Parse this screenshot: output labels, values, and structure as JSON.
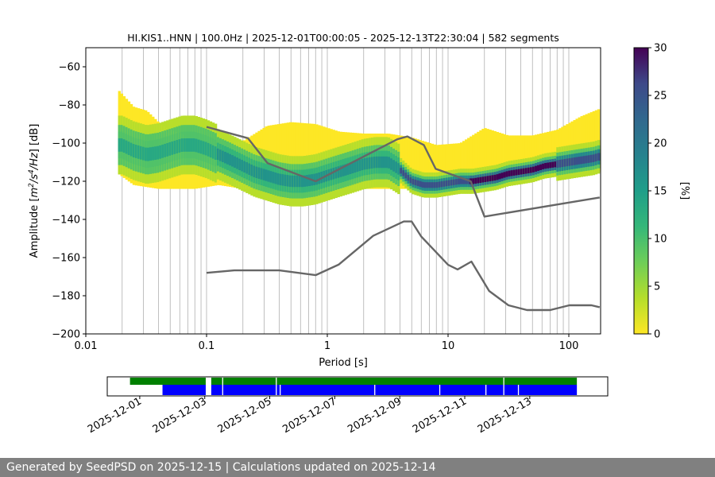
{
  "chart_data": [
    {
      "type": "heatmap",
      "title": "HI.KIS1..HNN | 100.0Hz | 2025-12-01T00:00:05 - 2025-12-13T22:30:04 | 582 segments",
      "xlabel": "Period [s]",
      "ylabel_parts": [
        "Amplitude [",
        "m",
        "2",
        "/s",
        "4",
        "/Hz",
        "] [dB]"
      ],
      "x_scale": "log",
      "xlim": [
        0.01,
        180
      ],
      "ylim": [
        -200,
        -50
      ],
      "x_ticks": [
        0.01,
        0.1,
        1,
        10,
        100
      ],
      "x_tick_labels": [
        "0.01",
        "0.1",
        "1",
        "10",
        "100"
      ],
      "y_ticks": [
        -200,
        -180,
        -160,
        -140,
        -120,
        -100,
        -80,
        -60
      ],
      "y_tick_labels": [
        "−200",
        "−180",
        "−160",
        "−140",
        "−120",
        "−100",
        "−80",
        "−60"
      ],
      "grid": "vertical lines at each logarithmic subdivision of the period axis",
      "colormap": "viridis (reversed: yellow = 0, dark purple = 30)",
      "colorbar": {
        "label": "[%]",
        "range": [
          0,
          30
        ],
        "ticks": [
          0,
          5,
          10,
          15,
          20,
          25,
          30
        ],
        "tick_labels": [
          "0",
          "5",
          "10",
          "15",
          "20",
          "25",
          "30"
        ]
      },
      "mode_curve": [
        {
          "period": 0.02,
          "db": -101
        },
        {
          "period": 0.025,
          "db": -104
        },
        {
          "period": 0.032,
          "db": -106
        },
        {
          "period": 0.04,
          "db": -105
        },
        {
          "period": 0.05,
          "db": -103
        },
        {
          "period": 0.063,
          "db": -101
        },
        {
          "period": 0.08,
          "db": -101
        },
        {
          "period": 0.1,
          "db": -103
        },
        {
          "period": 0.126,
          "db": -106
        },
        {
          "period": 0.16,
          "db": -109
        },
        {
          "period": 0.2,
          "db": -112
        },
        {
          "period": 0.25,
          "db": -115
        },
        {
          "period": 0.316,
          "db": -117
        },
        {
          "period": 0.4,
          "db": -119
        },
        {
          "period": 0.5,
          "db": -120
        },
        {
          "period": 0.63,
          "db": -120
        },
        {
          "period": 0.8,
          "db": -119
        },
        {
          "period": 1.0,
          "db": -117
        },
        {
          "period": 1.26,
          "db": -115
        },
        {
          "period": 1.6,
          "db": -113
        },
        {
          "period": 2.0,
          "db": -111
        },
        {
          "period": 2.5,
          "db": -110
        },
        {
          "period": 3.2,
          "db": -110
        },
        {
          "period": 4.0,
          "db": -114
        },
        {
          "period": 5.0,
          "db": -120
        },
        {
          "period": 6.3,
          "db": -122
        },
        {
          "period": 8.0,
          "db": -122
        },
        {
          "period": 10,
          "db": -121
        },
        {
          "period": 12.6,
          "db": -120
        },
        {
          "period": 16,
          "db": -120
        },
        {
          "period": 20,
          "db": -119
        },
        {
          "period": 25,
          "db": -118
        },
        {
          "period": 31.6,
          "db": -116
        },
        {
          "period": 40,
          "db": -115
        },
        {
          "period": 50,
          "db": -114
        },
        {
          "period": 63,
          "db": -112
        },
        {
          "period": 80,
          "db": -111
        },
        {
          "period": 100,
          "db": -110
        },
        {
          "period": 126,
          "db": -109
        },
        {
          "period": 160,
          "db": -108
        },
        {
          "period": 180,
          "db": -107
        }
      ],
      "spread_upper": [
        {
          "period": 0.0185,
          "db": -72
        },
        {
          "period": 0.025,
          "db": -81
        },
        {
          "period": 0.032,
          "db": -83
        },
        {
          "period": 0.04,
          "db": -89
        },
        {
          "period": 0.05,
          "db": -93
        },
        {
          "period": 0.063,
          "db": -95
        },
        {
          "period": 0.08,
          "db": -99
        },
        {
          "period": 0.126,
          "db": -101
        },
        {
          "period": 0.2,
          "db": -99
        },
        {
          "period": 0.316,
          "db": -91
        },
        {
          "period": 0.5,
          "db": -89
        },
        {
          "period": 0.8,
          "db": -90
        },
        {
          "period": 1.26,
          "db": -94
        },
        {
          "period": 2.0,
          "db": -95
        },
        {
          "period": 3.2,
          "db": -95
        },
        {
          "period": 5.0,
          "db": -97
        },
        {
          "period": 6.3,
          "db": -99
        },
        {
          "period": 8.0,
          "db": -101
        },
        {
          "period": 12.6,
          "db": -100
        },
        {
          "period": 20,
          "db": -92
        },
        {
          "period": 31.6,
          "db": -96
        },
        {
          "period": 50,
          "db": -96
        },
        {
          "period": 80,
          "db": -93
        },
        {
          "period": 126,
          "db": -86
        },
        {
          "period": 180,
          "db": -82
        }
      ],
      "spread_lower": [
        {
          "period": 0.0185,
          "db": -116
        },
        {
          "period": 0.025,
          "db": -122
        },
        {
          "period": 0.04,
          "db": -124
        },
        {
          "period": 0.08,
          "db": -124
        },
        {
          "period": 0.126,
          "db": -122
        },
        {
          "period": 0.2,
          "db": -124
        },
        {
          "period": 0.5,
          "db": -125
        },
        {
          "period": 1.0,
          "db": -125
        },
        {
          "period": 2.0,
          "db": -124
        },
        {
          "period": 4.0,
          "db": -124
        },
        {
          "period": 6.3,
          "db": -124
        },
        {
          "period": 10,
          "db": -123
        },
        {
          "period": 16,
          "db": -123
        },
        {
          "period": 25,
          "db": -121
        },
        {
          "period": 40,
          "db": -120
        },
        {
          "period": 63,
          "db": -118
        },
        {
          "period": 100,
          "db": -117
        },
        {
          "period": 180,
          "db": -115
        }
      ],
      "reference_curves": [
        {
          "id": "high-noise-model",
          "points": [
            {
              "period": 0.1,
              "db": -91.5
            },
            {
              "period": 0.22,
              "db": -97.4
            },
            {
              "period": 0.32,
              "db": -110.5
            },
            {
              "period": 0.8,
              "db": -120
            },
            {
              "period": 3.8,
              "db": -98
            },
            {
              "period": 4.6,
              "db": -96.5
            },
            {
              "period": 6.3,
              "db": -101
            },
            {
              "period": 7.9,
              "db": -113.5
            },
            {
              "period": 15.4,
              "db": -120
            },
            {
              "period": 20,
              "db": -138.5
            },
            {
              "period": 180,
              "db": -128.5
            }
          ]
        },
        {
          "id": "low-noise-model",
          "points": [
            {
              "period": 0.1,
              "db": -168
            },
            {
              "period": 0.17,
              "db": -166.7
            },
            {
              "period": 0.4,
              "db": -166.7
            },
            {
              "period": 0.8,
              "db": -169.2
            },
            {
              "period": 1.24,
              "db": -163.7
            },
            {
              "period": 2.4,
              "db": -148.6
            },
            {
              "period": 4.3,
              "db": -141.1
            },
            {
              "period": 5.0,
              "db": -141.1
            },
            {
              "period": 6.0,
              "db": -149
            },
            {
              "period": 10,
              "db": -163.8
            },
            {
              "period": 12,
              "db": -166.2
            },
            {
              "period": 15.6,
              "db": -162.1
            },
            {
              "period": 21.9,
              "db": -177.5
            },
            {
              "period": 31.6,
              "db": -185
            },
            {
              "period": 45,
              "db": -187.5
            },
            {
              "period": 70,
              "db": -187.5
            },
            {
              "period": 101,
              "db": -185
            },
            {
              "period": 154,
              "db": -185
            },
            {
              "period": 180,
              "db": -186
            }
          ]
        }
      ]
    },
    {
      "type": "bar",
      "subtype": "data-availability-timeline",
      "x_tick_labels": [
        "2025-12-01",
        "2025-12-03",
        "2025-12-05",
        "2025-12-07",
        "2025-12-09",
        "2025-12-11",
        "2025-12-13"
      ],
      "x_tick_days": [
        1,
        3,
        5,
        7,
        9,
        11,
        13
      ],
      "xlim_days": [
        0.0,
        15.4
      ],
      "series": [
        {
          "color": "#008000",
          "intervals_days": [
            [
              0.7,
              3.03
            ],
            [
              3.2,
              14.45
            ]
          ],
          "gaps_days": [
            3.55,
            5.2,
            12.2
          ]
        },
        {
          "color": "#0000ff",
          "intervals_days": [
            [
              1.7,
              3.03
            ],
            [
              3.2,
              14.45
            ]
          ],
          "gaps_days": [
            3.55,
            5.2,
            5.32,
            8.23,
            10.23,
            11.65,
            12.2,
            12.65
          ]
        }
      ]
    }
  ],
  "footer": {
    "text": "Generated by SeedPSD on 2025-12-15 | Calculations updated on 2025-12-14"
  }
}
